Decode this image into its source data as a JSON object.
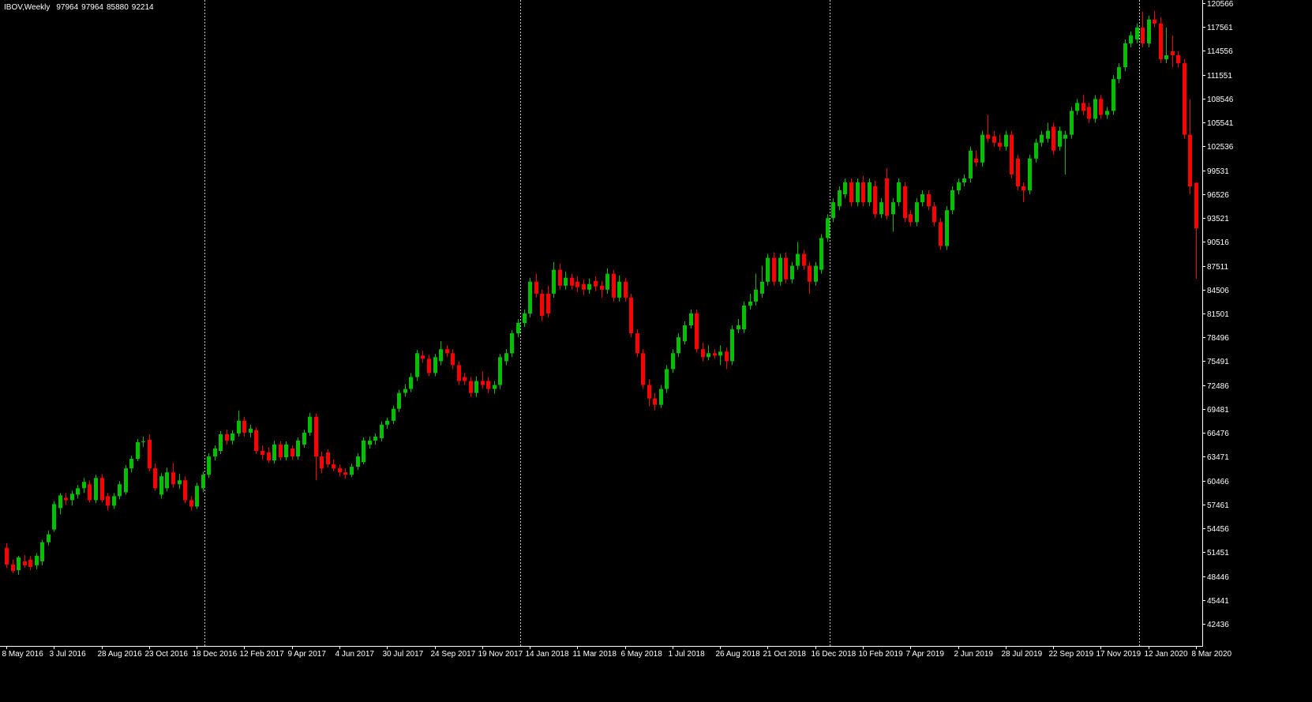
{
  "chart_data": {
    "type": "candlestick",
    "title": "IBOV,Weekly",
    "up_color": "#00c000",
    "down_color": "#ff0000",
    "ylim": [
      39650,
      120960
    ],
    "yticks": [
      120566,
      117561,
      114556,
      111551,
      108546,
      105541,
      102536,
      99531,
      96526,
      93521,
      90516,
      87511,
      84506,
      81501,
      78496,
      75491,
      72486,
      69481,
      66476,
      63471,
      60466,
      57461,
      54456,
      51451,
      48446,
      45441,
      42436
    ],
    "categories": [
      "8 May 2016",
      null,
      null,
      null,
      null,
      null,
      null,
      null,
      "3 Jul 2016",
      null,
      null,
      null,
      null,
      null,
      null,
      null,
      "28 Aug 2016",
      null,
      null,
      null,
      null,
      null,
      null,
      null,
      "23 Oct 2016",
      null,
      null,
      null,
      null,
      null,
      null,
      null,
      "18 Dec 2016",
      null,
      null,
      null,
      null,
      null,
      null,
      null,
      "12 Feb 2017",
      null,
      null,
      null,
      null,
      null,
      null,
      null,
      "9 Apr 2017",
      null,
      null,
      null,
      null,
      null,
      null,
      null,
      "4 Jun 2017",
      null,
      null,
      null,
      null,
      null,
      null,
      null,
      "30 Jul 2017",
      null,
      null,
      null,
      null,
      null,
      null,
      null,
      "24 Sep 2017",
      null,
      null,
      null,
      null,
      null,
      null,
      null,
      "19 Nov 2017",
      null,
      null,
      null,
      null,
      null,
      null,
      null,
      "14 Jan 2018",
      null,
      null,
      null,
      null,
      null,
      null,
      null,
      "11 Mar 2018",
      null,
      null,
      null,
      null,
      null,
      null,
      null,
      "6 May 2018",
      null,
      null,
      null,
      null,
      null,
      null,
      null,
      "1 Jul 2018",
      null,
      null,
      null,
      null,
      null,
      null,
      null,
      "26 Aug 2018",
      null,
      null,
      null,
      null,
      null,
      null,
      null,
      "21 Oct 2018",
      null,
      null,
      null,
      null,
      null,
      null,
      null,
      "16 Dec 2018",
      null,
      null,
      null,
      null,
      null,
      null,
      null,
      "10 Feb 2019",
      null,
      null,
      null,
      null,
      null,
      null,
      null,
      "7 Apr 2019",
      null,
      null,
      null,
      null,
      null,
      null,
      null,
      "2 Jun 2019",
      null,
      null,
      null,
      null,
      null,
      null,
      null,
      "28 Jul 2019",
      null,
      null,
      null,
      null,
      null,
      null,
      null,
      "22 Sep 2019",
      null,
      null,
      null,
      null,
      null,
      null,
      null,
      "17 Nov 2019",
      null,
      null,
      null,
      null,
      null,
      null,
      null,
      "12 Jan 2020",
      null,
      null,
      null,
      null,
      null,
      null,
      null,
      "8 Mar 2020"
    ],
    "candles": [
      [
        52000,
        52600,
        49500,
        49900
      ],
      [
        49900,
        50500,
        48800,
        49100
      ],
      [
        49200,
        51000,
        48600,
        50800
      ],
      [
        50300,
        51100,
        49500,
        49800
      ],
      [
        50500,
        51000,
        49200,
        49600
      ],
      [
        49800,
        51300,
        49300,
        51000
      ],
      [
        50300,
        53000,
        49800,
        52700
      ],
      [
        52700,
        54200,
        52300,
        53700
      ],
      [
        54300,
        57900,
        54000,
        57500
      ],
      [
        57000,
        58900,
        56200,
        58600
      ],
      [
        58300,
        58900,
        57400,
        58000
      ],
      [
        58000,
        59200,
        57300,
        58800
      ],
      [
        58700,
        59900,
        58200,
        59500
      ],
      [
        59500,
        60800,
        58900,
        60300
      ],
      [
        60000,
        60500,
        57700,
        58000
      ],
      [
        58000,
        61200,
        57600,
        60800
      ],
      [
        60800,
        61300,
        57700,
        58000
      ],
      [
        58500,
        58900,
        56700,
        57300
      ],
      [
        57300,
        58900,
        56900,
        58500
      ],
      [
        58500,
        60400,
        58100,
        60000
      ],
      [
        59000,
        62400,
        58700,
        62000
      ],
      [
        62000,
        63600,
        61500,
        63200
      ],
      [
        63200,
        65700,
        62900,
        65300
      ],
      [
        65300,
        66000,
        64700,
        65400
      ],
      [
        65600,
        66300,
        61600,
        62000
      ],
      [
        62000,
        62600,
        59200,
        59500
      ],
      [
        58700,
        61400,
        58200,
        61000
      ],
      [
        59500,
        62100,
        59100,
        61500
      ],
      [
        61500,
        62700,
        59600,
        60000
      ],
      [
        60000,
        61300,
        59400,
        60500
      ],
      [
        60500,
        61000,
        57600,
        58000
      ],
      [
        58000,
        58500,
        56700,
        57200
      ],
      [
        57200,
        60200,
        56900,
        59800
      ],
      [
        59500,
        61600,
        59000,
        61200
      ],
      [
        61200,
        63900,
        60800,
        63500
      ],
      [
        63500,
        64900,
        63000,
        64500
      ],
      [
        64200,
        66700,
        63800,
        66300
      ],
      [
        66300,
        66900,
        65000,
        65500
      ],
      [
        65500,
        66800,
        65000,
        66400
      ],
      [
        66400,
        69300,
        66000,
        68000
      ],
      [
        68000,
        68500,
        66000,
        66500
      ],
      [
        66500,
        67500,
        65900,
        67000
      ],
      [
        66800,
        67200,
        63800,
        64200
      ],
      [
        64200,
        64900,
        63100,
        63700
      ],
      [
        64000,
        64600,
        62700,
        63000
      ],
      [
        63000,
        65500,
        62600,
        65000
      ],
      [
        65000,
        65400,
        63000,
        63400
      ],
      [
        63400,
        65400,
        63000,
        65000
      ],
      [
        64500,
        64900,
        63100,
        63500
      ],
      [
        63500,
        65900,
        63100,
        65500
      ],
      [
        65000,
        66900,
        64600,
        66500
      ],
      [
        66500,
        69000,
        66100,
        68500
      ],
      [
        68500,
        68900,
        60500,
        63500
      ],
      [
        63500,
        64100,
        61400,
        62000
      ],
      [
        64000,
        64400,
        62100,
        62500
      ],
      [
        62500,
        63100,
        61600,
        62000
      ],
      [
        62000,
        62500,
        61000,
        61500
      ],
      [
        61500,
        62000,
        60700,
        61200
      ],
      [
        61200,
        62600,
        60900,
        62200
      ],
      [
        62200,
        63900,
        61800,
        63500
      ],
      [
        62800,
        65900,
        62500,
        65500
      ],
      [
        65000,
        66000,
        64500,
        65500
      ],
      [
        65500,
        66400,
        65000,
        66000
      ],
      [
        65800,
        67900,
        65400,
        67500
      ],
      [
        67500,
        68400,
        67000,
        68000
      ],
      [
        68000,
        69900,
        67600,
        69500
      ],
      [
        69500,
        71900,
        69100,
        71500
      ],
      [
        71500,
        72600,
        71000,
        72000
      ],
      [
        72000,
        74000,
        71600,
        73500
      ],
      [
        73500,
        76900,
        73000,
        76500
      ],
      [
        76200,
        76800,
        75300,
        75800
      ],
      [
        75800,
        76300,
        73600,
        74000
      ],
      [
        74000,
        76400,
        73600,
        76000
      ],
      [
        75500,
        78000,
        75000,
        77000
      ],
      [
        77000,
        77500,
        76000,
        76500
      ],
      [
        76500,
        77000,
        74500,
        75000
      ],
      [
        75000,
        75500,
        72500,
        73000
      ],
      [
        73500,
        74000,
        72500,
        73000
      ],
      [
        73000,
        73500,
        71000,
        71500
      ],
      [
        71500,
        73600,
        71000,
        73000
      ],
      [
        73000,
        74200,
        72000,
        72500
      ],
      [
        73000,
        73500,
        71500,
        72000
      ],
      [
        72000,
        73000,
        71400,
        72500
      ],
      [
        72500,
        76400,
        72000,
        76000
      ],
      [
        75500,
        77000,
        75000,
        76500
      ],
      [
        76500,
        79400,
        76000,
        79000
      ],
      [
        79000,
        80800,
        78500,
        80300
      ],
      [
        80300,
        82000,
        79800,
        81500
      ],
      [
        81500,
        86000,
        81000,
        85500
      ],
      [
        85500,
        86500,
        83500,
        84000
      ],
      [
        84000,
        84500,
        80500,
        81200
      ],
      [
        84000,
        85000,
        81000,
        81500
      ],
      [
        84000,
        88000,
        83500,
        87000
      ],
      [
        87000,
        87800,
        84500,
        85000
      ],
      [
        85000,
        86800,
        84500,
        86000
      ],
      [
        86000,
        86500,
        84500,
        85000
      ],
      [
        85500,
        86200,
        84200,
        84800
      ],
      [
        85200,
        85800,
        83800,
        84500
      ],
      [
        84500,
        85900,
        84000,
        85200
      ],
      [
        85600,
        86200,
        84300,
        84900
      ],
      [
        85000,
        85600,
        83500,
        84500
      ],
      [
        84500,
        87200,
        84000,
        86500
      ],
      [
        86500,
        87000,
        83000,
        83500
      ],
      [
        83500,
        86300,
        83000,
        85500
      ],
      [
        85500,
        86000,
        83000,
        83500
      ],
      [
        83500,
        84000,
        78500,
        79000
      ],
      [
        79000,
        79500,
        76000,
        76500
      ],
      [
        76500,
        77000,
        72000,
        72500
      ],
      [
        72500,
        73200,
        69800,
        70800
      ],
      [
        70800,
        71500,
        69300,
        70000
      ],
      [
        70000,
        72500,
        69600,
        72000
      ],
      [
        72000,
        75000,
        71500,
        74500
      ],
      [
        74500,
        77000,
        74000,
        76500
      ],
      [
        76500,
        79000,
        76000,
        78500
      ],
      [
        78000,
        80500,
        77600,
        80000
      ],
      [
        80000,
        82000,
        79600,
        81500
      ],
      [
        81500,
        82000,
        76600,
        77000
      ],
      [
        77000,
        77800,
        75500,
        76000
      ],
      [
        76000,
        77500,
        75600,
        76500
      ],
      [
        76500,
        77000,
        75800,
        76200
      ],
      [
        76200,
        77500,
        75000,
        76700
      ],
      [
        76700,
        77200,
        74500,
        75500
      ],
      [
        75500,
        80000,
        75000,
        79500
      ],
      [
        79500,
        80800,
        79000,
        80000
      ],
      [
        79500,
        83000,
        79000,
        82500
      ],
      [
        82500,
        84000,
        82000,
        83000
      ],
      [
        83000,
        86500,
        82500,
        84500
      ],
      [
        84000,
        87500,
        83500,
        85500
      ],
      [
        85500,
        89000,
        85000,
        88500
      ],
      [
        88500,
        89200,
        85000,
        85500
      ],
      [
        85500,
        89000,
        85000,
        88500
      ],
      [
        88500,
        89200,
        85300,
        85800
      ],
      [
        85800,
        88000,
        85300,
        87500
      ],
      [
        87500,
        90500,
        87000,
        89000
      ],
      [
        89000,
        89500,
        87000,
        87500
      ],
      [
        87500,
        88000,
        84000,
        85500
      ],
      [
        85500,
        88000,
        85000,
        87500
      ],
      [
        87000,
        91500,
        86500,
        91000
      ],
      [
        91000,
        94000,
        90500,
        93500
      ],
      [
        93500,
        96000,
        93000,
        95500
      ],
      [
        95000,
        97500,
        94500,
        97000
      ],
      [
        96500,
        98500,
        96000,
        98000
      ],
      [
        98000,
        98500,
        95000,
        95500
      ],
      [
        95500,
        98500,
        95000,
        98000
      ],
      [
        98000,
        98800,
        95000,
        95500
      ],
      [
        95500,
        98500,
        95000,
        98000
      ],
      [
        97500,
        98200,
        93500,
        94000
      ],
      [
        94000,
        96000,
        93500,
        95500
      ],
      [
        98500,
        99800,
        93300,
        93800
      ],
      [
        94000,
        96000,
        91800,
        95500
      ],
      [
        95500,
        98500,
        95000,
        98000
      ],
      [
        97500,
        98000,
        93000,
        93500
      ],
      [
        94000,
        94500,
        92500,
        93000
      ],
      [
        93000,
        96000,
        92500,
        95500
      ],
      [
        95500,
        97000,
        95000,
        96500
      ],
      [
        96500,
        97000,
        94500,
        95000
      ],
      [
        95000,
        95500,
        92500,
        93000
      ],
      [
        93000,
        93500,
        89500,
        90000
      ],
      [
        90000,
        95000,
        89500,
        94500
      ],
      [
        94500,
        97500,
        94000,
        97000
      ],
      [
        97000,
        98500,
        96500,
        98000
      ],
      [
        98000,
        99000,
        97500,
        98500
      ],
      [
        98500,
        102500,
        98000,
        102000
      ],
      [
        101000,
        102000,
        100000,
        100500
      ],
      [
        100500,
        104500,
        100000,
        104000
      ],
      [
        104000,
        106500,
        103000,
        103500
      ],
      [
        103800,
        104500,
        102500,
        103000
      ],
      [
        103000,
        104000,
        102000,
        102500
      ],
      [
        102500,
        104500,
        102000,
        104000
      ],
      [
        104000,
        104500,
        98500,
        99000
      ],
      [
        101000,
        101500,
        97000,
        97500
      ],
      [
        97500,
        98000,
        95500,
        97000
      ],
      [
        97000,
        101500,
        96500,
        101000
      ],
      [
        101000,
        103500,
        100500,
        103000
      ],
      [
        103000,
        104500,
        102500,
        104000
      ],
      [
        103500,
        105500,
        103000,
        104500
      ],
      [
        105000,
        105500,
        101500,
        102000
      ],
      [
        102500,
        105000,
        102000,
        104500
      ],
      [
        103500,
        104500,
        99000,
        104000
      ],
      [
        104000,
        107500,
        103500,
        107000
      ],
      [
        107000,
        108500,
        106500,
        108000
      ],
      [
        108000,
        109000,
        106500,
        107000
      ],
      [
        107500,
        108000,
        105500,
        106000
      ],
      [
        106000,
        109000,
        105500,
        108500
      ],
      [
        108500,
        109000,
        106000,
        106500
      ],
      [
        106500,
        107500,
        106000,
        107000
      ],
      [
        107000,
        111500,
        106500,
        111000
      ],
      [
        111000,
        113000,
        110500,
        112500
      ],
      [
        112500,
        116000,
        112000,
        115500
      ],
      [
        115500,
        117000,
        115000,
        116500
      ],
      [
        116000,
        118000,
        115500,
        117500
      ],
      [
        117500,
        119500,
        115000,
        115500
      ],
      [
        115500,
        119000,
        115000,
        118500
      ],
      [
        118500,
        119600,
        117500,
        118000
      ],
      [
        118000,
        118800,
        113000,
        113500
      ],
      [
        113500,
        117500,
        113000,
        114000
      ],
      [
        114500,
        116500,
        112500,
        114000
      ],
      [
        114000,
        114500,
        112500,
        113000
      ],
      [
        113000,
        113500,
        103500,
        104000
      ],
      [
        104000,
        108500,
        96500,
        97500
      ],
      [
        97964,
        97964,
        85880,
        92214
      ]
    ]
  }
}
